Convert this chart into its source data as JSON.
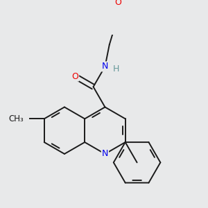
{
  "bg_color": "#e8e9ea",
  "bond_color": "#1a1a1a",
  "N_color": "#0000ee",
  "O_color": "#ee0000",
  "H_color": "#669999",
  "bond_lw": 1.4,
  "figsize": [
    3.0,
    3.0
  ],
  "dpi": 100,
  "xlim": [
    0.15,
    2.85
  ],
  "ylim": [
    0.1,
    2.9
  ]
}
